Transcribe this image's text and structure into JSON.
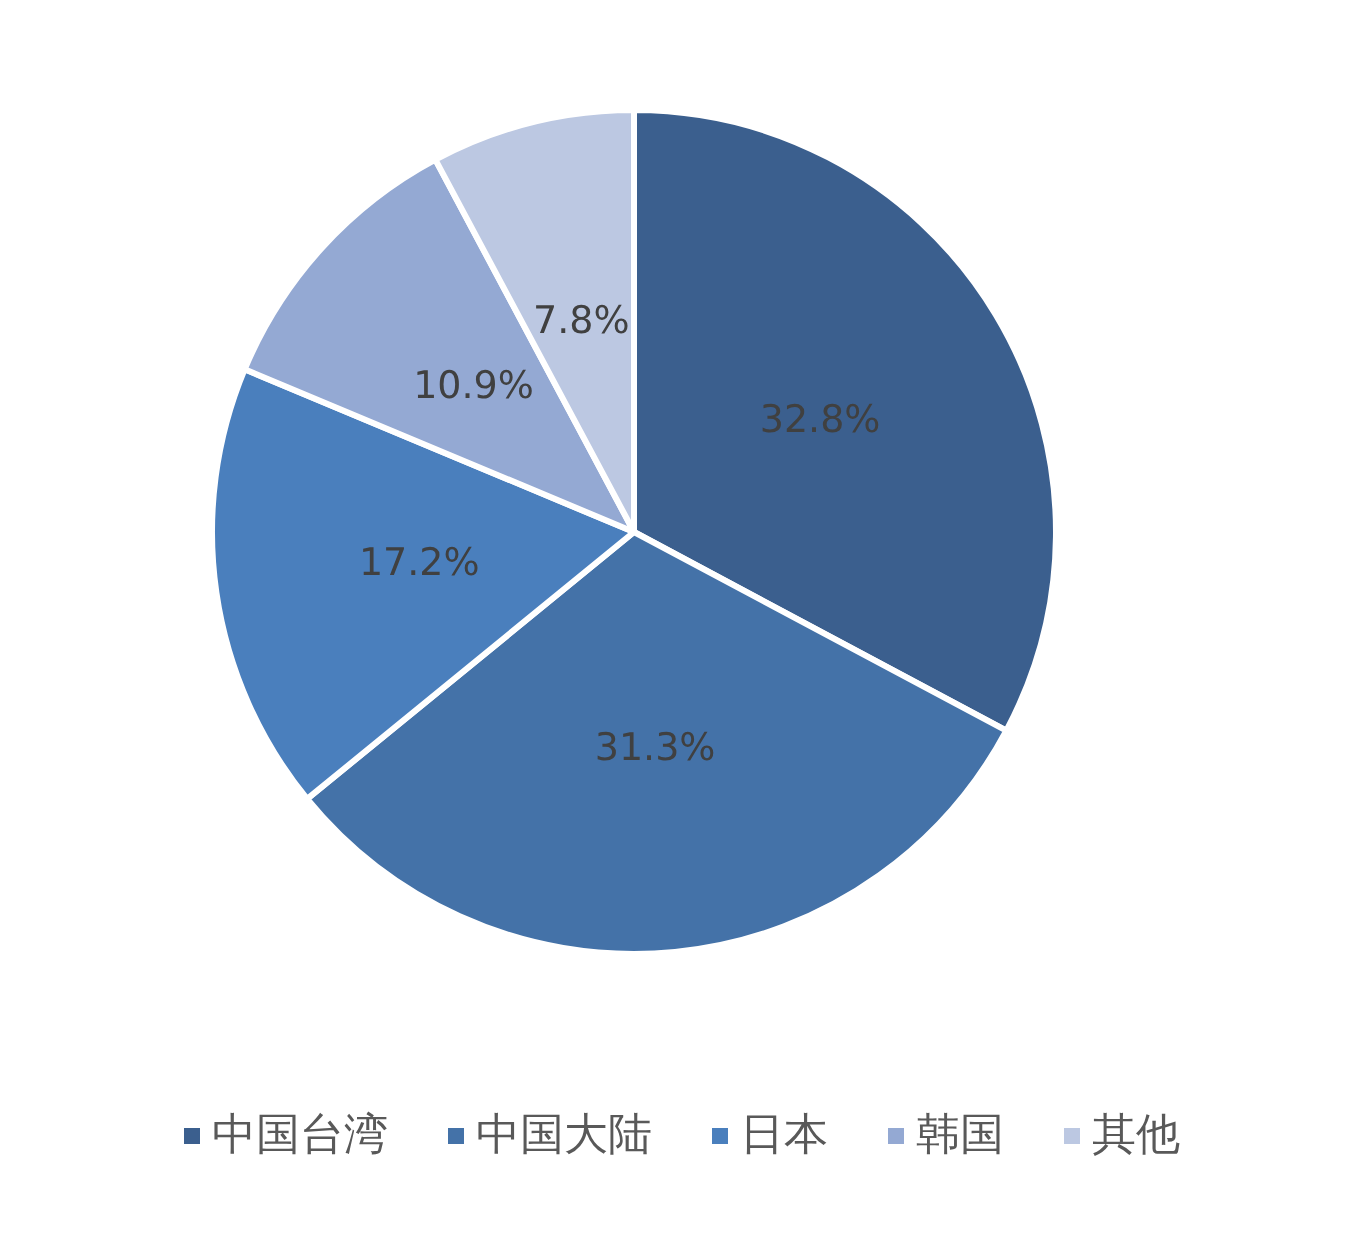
{
  "chart_data": {
    "type": "pie",
    "categories": [
      "中国台湾",
      "中国大陆",
      "日本",
      "韩国",
      "其他"
    ],
    "values": [
      32.8,
      31.3,
      17.2,
      10.9,
      7.8
    ],
    "value_labels": [
      "32.8%",
      "31.3%",
      "17.2%",
      "10.9%",
      "7.8%"
    ],
    "colors": [
      "#3b5f8e",
      "#4472a8",
      "#4a7fbd",
      "#94a9d3",
      "#bcc8e2"
    ],
    "legend": "bottom"
  }
}
